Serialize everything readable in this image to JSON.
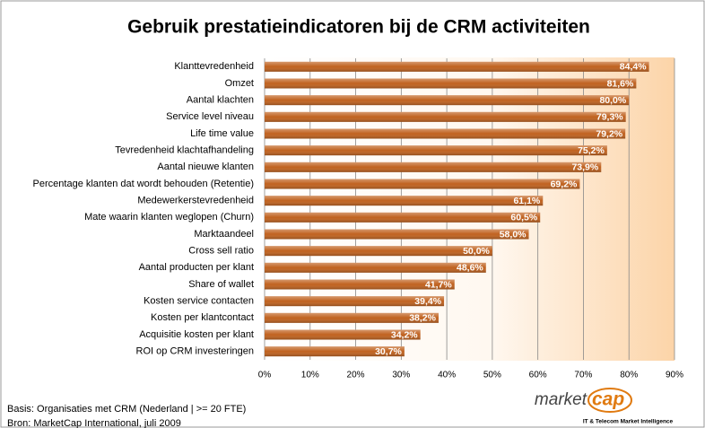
{
  "chart_data": {
    "type": "bar",
    "orientation": "horizontal",
    "title": "Gebruik prestatieindicatoren bij de CRM activiteiten",
    "categories": [
      "Klanttevredenheid",
      "Omzet",
      "Aantal klachten",
      "Service level niveau",
      "Life time value",
      "Tevredenheid klachtafhandeling",
      "Aantal nieuwe klanten",
      "Percentage klanten dat wordt behouden (Retentie)",
      "Medewerkerstevredenheid",
      "Mate waarin klanten weglopen (Churn)",
      "Marktaandeel",
      "Cross sell ratio",
      "Aantal producten per klant",
      "Share of wallet",
      "Kosten service contacten",
      "Kosten per klantcontact",
      "Acquisitie kosten per klant",
      "ROI op CRM investeringen"
    ],
    "values": [
      84.4,
      81.6,
      80.0,
      79.3,
      79.2,
      75.2,
      73.9,
      69.2,
      61.1,
      60.5,
      58.0,
      50.0,
      48.6,
      41.7,
      39.4,
      38.2,
      34.2,
      30.7
    ],
    "value_labels": [
      "84,4%",
      "81,6%",
      "80,0%",
      "79,3%",
      "79,2%",
      "75,2%",
      "73,9%",
      "69,2%",
      "61,1%",
      "60,5%",
      "58,0%",
      "50,0%",
      "48,6%",
      "41,7%",
      "39,4%",
      "38,2%",
      "34,2%",
      "30,7%"
    ],
    "color": "#c0621f",
    "xlim": [
      0,
      90
    ],
    "xticks": [
      {
        "value": 0,
        "label": "0%"
      },
      {
        "value": 10,
        "label": "10%"
      },
      {
        "value": 20,
        "label": "20%"
      },
      {
        "value": 30,
        "label": "30%"
      },
      {
        "value": 40,
        "label": "40%"
      },
      {
        "value": 50,
        "label": "50%"
      },
      {
        "value": 60,
        "label": "60%"
      },
      {
        "value": 70,
        "label": "70%"
      },
      {
        "value": 80,
        "label": "80%"
      },
      {
        "value": 90,
        "label": "90%"
      }
    ],
    "grid": true,
    "notes": [
      "Basis: Organisaties met CRM  (Nederland | >= 20 FTE)",
      "Bron: MarketCap International, juli 2009"
    ],
    "logo": {
      "word1": "market",
      "word2": "cap",
      "tagline": "IT & Telecom Market Intelligence"
    }
  }
}
